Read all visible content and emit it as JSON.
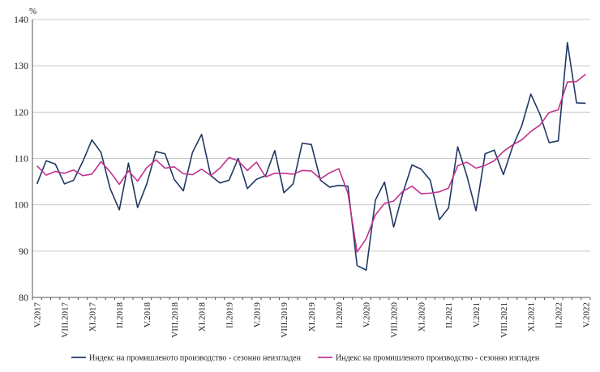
{
  "chart_data": {
    "type": "line",
    "title": "",
    "xlabel": "",
    "ylabel": "%",
    "ylim": [
      80,
      140
    ],
    "yticks": [
      80,
      90,
      100,
      110,
      120,
      130,
      140
    ],
    "grid": true,
    "legend_position": "bottom",
    "x_start": "V.2017",
    "x_end": "V.2022",
    "tick_labels": [
      "V.2017",
      "VIII.2017",
      "XI.2017",
      "II.2018",
      "V.2018",
      "VIII.2018",
      "XI.2018",
      "II.2019",
      "V.2019",
      "VIII.2019",
      "XI.2019",
      "II.2020",
      "V.2020",
      "VIII.2020",
      "XI.2020",
      "II.2021",
      "V.2021",
      "VIII.2021",
      "XI.2021",
      "II.2022",
      "V.2022"
    ],
    "series": [
      {
        "name": "Индекс на промишленото производство - сезонно неизгладен",
        "color": "#1f3864",
        "values": [
          104.5,
          109.5,
          108.8,
          104.5,
          105.3,
          109.3,
          114.0,
          111.3,
          103.5,
          98.9,
          109.0,
          99.4,
          104.5,
          111.5,
          111.0,
          105.5,
          103.0,
          111.3,
          115.2,
          106.3,
          104.7,
          105.3,
          110.0,
          103.5,
          105.5,
          106.3,
          111.7,
          102.6,
          104.5,
          113.3,
          113.0,
          105.3,
          103.8,
          104.2,
          104.0,
          86.9,
          85.9,
          101.0,
          104.9,
          95.2,
          102.5,
          108.6,
          107.7,
          105.3,
          96.8,
          99.3,
          112.5,
          106.3,
          98.7,
          111.0,
          111.8,
          106.5,
          112.5,
          117.0,
          123.9,
          119.5,
          113.4,
          113.8,
          135.0,
          122.0,
          121.9
        ]
      },
      {
        "name": "Индекс на промишленото производство - сезонно изгладен",
        "color": "#c0338f",
        "values": [
          108.4,
          106.4,
          107.2,
          106.8,
          107.5,
          106.3,
          106.6,
          109.3,
          107.1,
          104.4,
          107.3,
          105.1,
          108.0,
          109.7,
          107.9,
          108.2,
          106.7,
          106.5,
          107.7,
          106.3,
          107.9,
          110.2,
          109.5,
          107.4,
          109.2,
          106.0,
          106.8,
          106.8,
          106.6,
          107.4,
          107.3,
          105.6,
          106.9,
          107.8,
          102.5,
          89.8,
          92.7,
          97.8,
          100.3,
          100.8,
          102.9,
          104.0,
          102.4,
          102.5,
          102.8,
          103.6,
          108.4,
          109.2,
          107.9,
          108.5,
          109.5,
          111.5,
          112.9,
          114.0,
          115.8,
          117.2,
          119.9,
          120.5,
          126.5,
          126.6,
          128.2
        ]
      }
    ]
  }
}
